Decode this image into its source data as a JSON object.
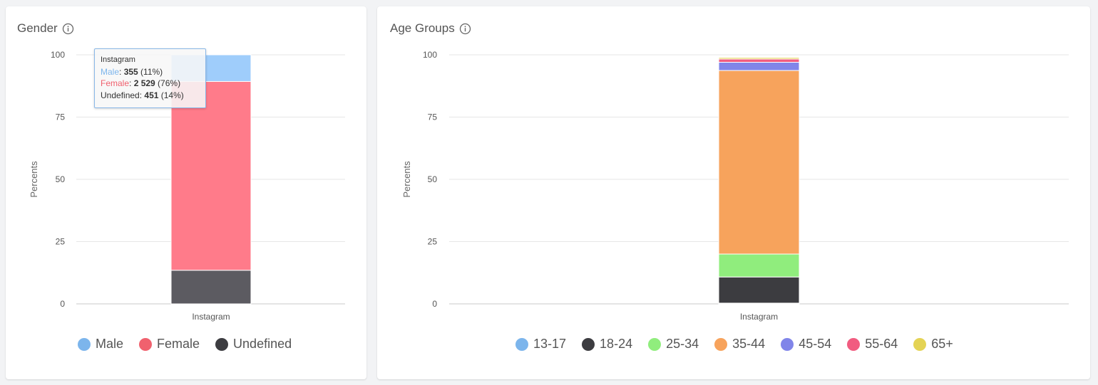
{
  "gender_card": {
    "title": "Gender",
    "tooltip": {
      "title": "Instagram",
      "rows": [
        {
          "label": "Male",
          "sep": ": ",
          "value": "355",
          "pct": " (11%)",
          "color": "#7cb5ec"
        },
        {
          "label": "Female",
          "sep": ": ",
          "value": "2 529",
          "pct": " (76%)",
          "color": "#f0616e"
        },
        {
          "label": "Undefined",
          "sep": ": ",
          "value": "451",
          "pct": " (14%)",
          "color": "#333333"
        }
      ]
    }
  },
  "age_card": {
    "title": "Age Groups"
  },
  "chart_data": [
    {
      "type": "bar",
      "stacked": true,
      "title": "Gender",
      "categories": [
        "Instagram"
      ],
      "ylabel": "Percents",
      "yticks": [
        "0",
        "25",
        "50",
        "75",
        "100"
      ],
      "ylim": [
        0,
        100
      ],
      "grid": true,
      "legend_position": "bottom",
      "series": [
        {
          "name": "Undefined",
          "values": [
            13.5
          ],
          "color": "#5c5b61"
        },
        {
          "name": "Female",
          "values": [
            75.8
          ],
          "color": "#ff7b8a"
        },
        {
          "name": "Male",
          "values": [
            10.7
          ],
          "color": "#9fcdfb"
        }
      ],
      "legend": [
        {
          "name": "Male",
          "color": "#7cb5ec"
        },
        {
          "name": "Female",
          "color": "#f0616e"
        },
        {
          "name": "Undefined",
          "color": "#3c3c40"
        }
      ]
    },
    {
      "type": "bar",
      "stacked": true,
      "title": "Age Groups",
      "categories": [
        "Instagram"
      ],
      "ylabel": "Percents",
      "yticks": [
        "0",
        "25",
        "50",
        "75",
        "100"
      ],
      "ylim": [
        0,
        100
      ],
      "grid": true,
      "legend_position": "bottom",
      "series": [
        {
          "name": "13-17",
          "values": [
            0.3
          ],
          "color": "#7cb5ec"
        },
        {
          "name": "18-24",
          "values": [
            10.5
          ],
          "color": "#3c3c40"
        },
        {
          "name": "25-34",
          "values": [
            9.2
          ],
          "color": "#90ed7d"
        },
        {
          "name": "35-44",
          "values": [
            73.7
          ],
          "color": "#f7a35c"
        },
        {
          "name": "45-54",
          "values": [
            3.3
          ],
          "color": "#8085e9"
        },
        {
          "name": "55-64",
          "values": [
            1.3
          ],
          "color": "#f15c80"
        },
        {
          "name": "65+",
          "values": [
            0.6
          ],
          "color": "#e4d354"
        }
      ],
      "legend": [
        {
          "name": "13-17",
          "color": "#7cb5ec"
        },
        {
          "name": "18-24",
          "color": "#3c3c40"
        },
        {
          "name": "25-34",
          "color": "#90ed7d"
        },
        {
          "name": "35-44",
          "color": "#f7a35c"
        },
        {
          "name": "45-54",
          "color": "#8085e9"
        },
        {
          "name": "55-64",
          "color": "#f15c80"
        },
        {
          "name": "65+",
          "color": "#e4d354"
        }
      ]
    }
  ]
}
